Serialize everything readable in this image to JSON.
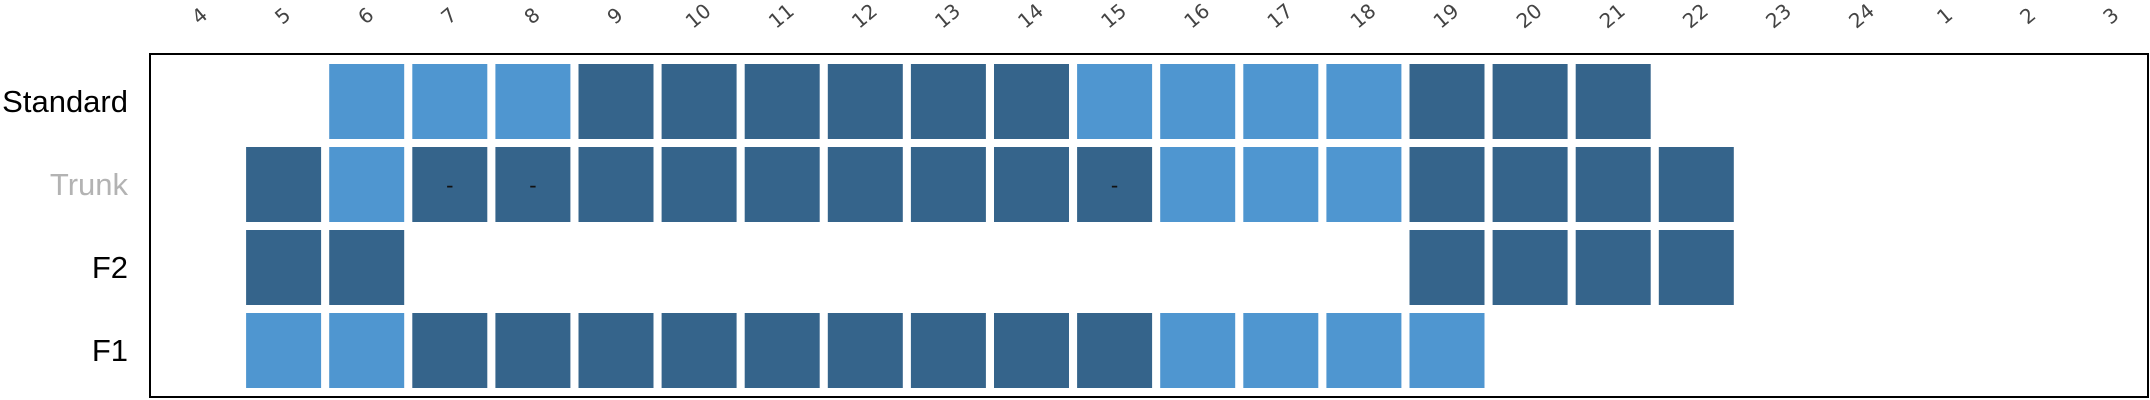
{
  "chart_data": {
    "type": "heatmap",
    "title": "",
    "xlabel": "",
    "ylabel": "",
    "x_ticks": [
      "4",
      "5",
      "6",
      "7",
      "8",
      "9",
      "10",
      "11",
      "12",
      "13",
      "14",
      "15",
      "16",
      "17",
      "18",
      "19",
      "20",
      "21",
      "22",
      "23",
      "24",
      "1",
      "2",
      "3"
    ],
    "rows": [
      {
        "label": "Standard",
        "label_color": "#000000",
        "cells": [
          {
            "x": "6",
            "level": "light"
          },
          {
            "x": "7",
            "level": "light"
          },
          {
            "x": "8",
            "level": "light"
          },
          {
            "x": "9",
            "level": "dark"
          },
          {
            "x": "10",
            "level": "dark"
          },
          {
            "x": "11",
            "level": "dark"
          },
          {
            "x": "12",
            "level": "dark"
          },
          {
            "x": "13",
            "level": "dark"
          },
          {
            "x": "14",
            "level": "dark"
          },
          {
            "x": "15",
            "level": "light"
          },
          {
            "x": "16",
            "level": "light"
          },
          {
            "x": "17",
            "level": "light"
          },
          {
            "x": "18",
            "level": "light"
          },
          {
            "x": "19",
            "level": "dark"
          },
          {
            "x": "20",
            "level": "dark"
          },
          {
            "x": "21",
            "level": "dark"
          }
        ]
      },
      {
        "label": "Trunk",
        "label_color": "#b3b3b3",
        "cells": [
          {
            "x": "5",
            "level": "dark"
          },
          {
            "x": "6",
            "level": "light"
          },
          {
            "x": "7",
            "level": "dark",
            "mark": "-"
          },
          {
            "x": "8",
            "level": "dark",
            "mark": "-"
          },
          {
            "x": "9",
            "level": "dark"
          },
          {
            "x": "10",
            "level": "dark"
          },
          {
            "x": "11",
            "level": "dark"
          },
          {
            "x": "12",
            "level": "dark"
          },
          {
            "x": "13",
            "level": "dark"
          },
          {
            "x": "14",
            "level": "dark"
          },
          {
            "x": "15",
            "level": "dark",
            "mark": "-"
          },
          {
            "x": "16",
            "level": "light"
          },
          {
            "x": "17",
            "level": "light"
          },
          {
            "x": "18",
            "level": "light"
          },
          {
            "x": "19",
            "level": "dark"
          },
          {
            "x": "20",
            "level": "dark"
          },
          {
            "x": "21",
            "level": "dark"
          },
          {
            "x": "22",
            "level": "dark"
          }
        ]
      },
      {
        "label": "F2",
        "label_color": "#000000",
        "cells": [
          {
            "x": "5",
            "level": "dark"
          },
          {
            "x": "6",
            "level": "dark"
          },
          {
            "x": "19",
            "level": "dark"
          },
          {
            "x": "20",
            "level": "dark"
          },
          {
            "x": "21",
            "level": "dark"
          },
          {
            "x": "22",
            "level": "dark"
          }
        ]
      },
      {
        "label": "F1",
        "label_color": "#000000",
        "cells": [
          {
            "x": "5",
            "level": "light"
          },
          {
            "x": "6",
            "level": "light"
          },
          {
            "x": "7",
            "level": "dark"
          },
          {
            "x": "8",
            "level": "dark"
          },
          {
            "x": "9",
            "level": "dark"
          },
          {
            "x": "10",
            "level": "dark"
          },
          {
            "x": "11",
            "level": "dark"
          },
          {
            "x": "12",
            "level": "dark"
          },
          {
            "x": "13",
            "level": "dark"
          },
          {
            "x": "14",
            "level": "dark"
          },
          {
            "x": "15",
            "level": "dark"
          },
          {
            "x": "16",
            "level": "light"
          },
          {
            "x": "17",
            "level": "light"
          },
          {
            "x": "18",
            "level": "light"
          },
          {
            "x": "19",
            "level": "light"
          }
        ]
      }
    ],
    "colors": {
      "dark": "#35648b",
      "light": "#4f96d0",
      "frame": "#000000",
      "background": "#ffffff"
    },
    "grid": false,
    "legend": "none"
  }
}
